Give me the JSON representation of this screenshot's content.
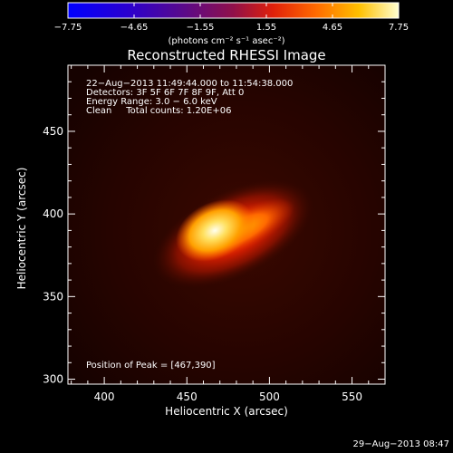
{
  "colorbar": {
    "min": -7.75,
    "max": 7.75,
    "tick_labels": [
      "−7.75",
      "−4.65",
      "−1.55",
      "1.55",
      "4.65",
      "7.75"
    ],
    "unit_label": "(photons cm⁻² s⁻¹ asec⁻²)"
  },
  "chart_data": {
    "type": "heatmap",
    "title": "Reconstructed RHESSI Image",
    "xlabel": "Heliocentric X (arcsec)",
    "ylabel": "Heliocentric Y (arcsec)",
    "xlim": [
      378,
      570
    ],
    "ylim": [
      297,
      490
    ],
    "xticks": [
      400,
      450,
      500,
      550
    ],
    "yticks": [
      300,
      350,
      400,
      450
    ],
    "peak": [
      467,
      390
    ],
    "source": {
      "description": "elongated bright flare source",
      "center": [
        478,
        388
      ],
      "length_arcsec": 70,
      "width_arcsec": 20,
      "orientation_deg": 26,
      "core": [
        467,
        390
      ],
      "max_value": 7.75
    },
    "annotations": [
      "22−Aug−2013 11:49:44.000 to 11:54:38.000",
      "Detectors: 3F 5F 6F 7F 8F 9F, Att 0",
      "Energy Range: 3.0 − 6.0 keV",
      "Clean     Total counts: 1.20E+06"
    ],
    "peak_text": "Position of Peak = [467,390]"
  },
  "timestamp": "29−Aug−2013 08:47"
}
